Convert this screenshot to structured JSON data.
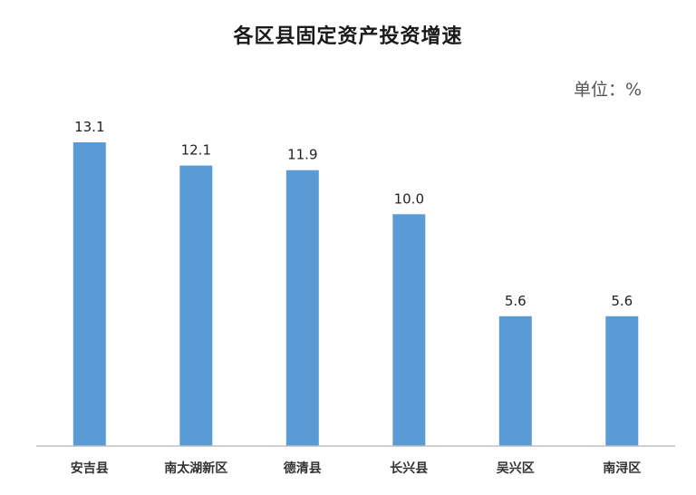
{
  "chart_data": {
    "type": "bar",
    "title": "各区县固定资产投资增速",
    "unit_label": "单位：%",
    "categories": [
      "安吉县",
      "南太湖新区",
      "德清县",
      "长兴县",
      "吴兴区",
      "南浔区"
    ],
    "values": [
      13.1,
      12.1,
      11.9,
      10.0,
      5.6,
      5.6
    ],
    "value_labels": [
      "13.1",
      "12.1",
      "11.9",
      "10.0",
      "5.6",
      "5.6"
    ],
    "ylim": [
      0,
      13.1
    ],
    "grid": false,
    "legend": "none",
    "bar_color": "#5B9BD5",
    "axis_color": "#BFBFBF"
  }
}
